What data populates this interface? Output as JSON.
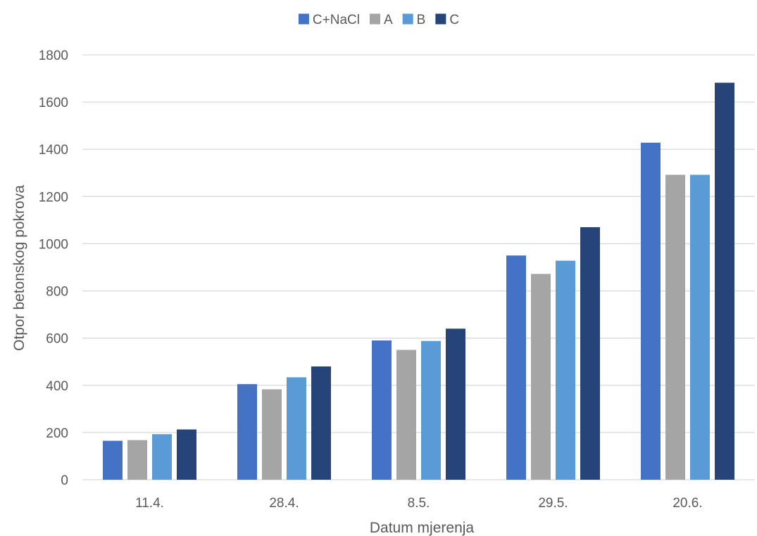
{
  "chart_data": {
    "type": "bar",
    "title": "",
    "xlabel": "Datum mjerenja",
    "ylabel": "Otpor betonskog pokrova",
    "categories": [
      "11.4.",
      "28.4.",
      "8.5.",
      "29.5.",
      "20.6."
    ],
    "series": [
      {
        "name": "C+NaCl",
        "color": "#4472c4",
        "values": [
          165,
          405,
          590,
          950,
          1428
        ]
      },
      {
        "name": "A",
        "color": "#a5a5a5",
        "values": [
          168,
          383,
          550,
          872,
          1292
        ]
      },
      {
        "name": "B",
        "color": "#5b9bd5",
        "values": [
          193,
          434,
          588,
          928,
          1292
        ]
      },
      {
        "name": "C",
        "color": "#264478",
        "values": [
          213,
          480,
          640,
          1070,
          1682
        ]
      }
    ],
    "ylim": [
      0,
      1800
    ],
    "yticks": [
      0,
      200,
      400,
      600,
      800,
      1000,
      1200,
      1400,
      1600,
      1800
    ],
    "grid": true,
    "legend_position": "top-center"
  }
}
